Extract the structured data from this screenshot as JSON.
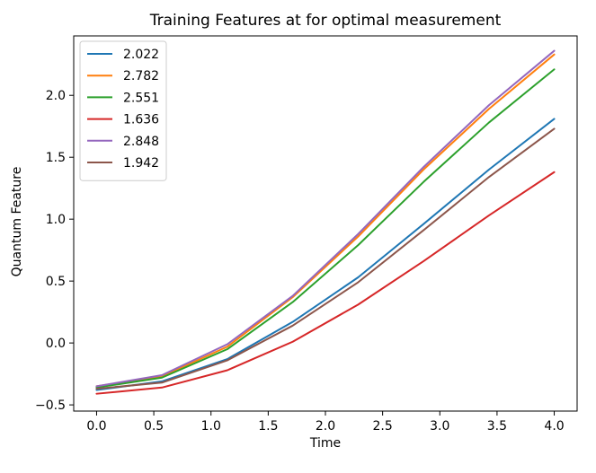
{
  "chart_data": {
    "type": "line",
    "title": "Training Features at for optimal measurement",
    "xlabel": "Time",
    "ylabel": "Quantum Feature",
    "xlim": [
      -0.2,
      4.2
    ],
    "ylim": [
      -0.55,
      2.48
    ],
    "x_ticks": [
      "0.0",
      "0.5",
      "1.0",
      "1.5",
      "2.0",
      "2.5",
      "3.0",
      "3.5",
      "4.0"
    ],
    "y_ticks": [
      "-0.5",
      "0.0",
      "0.5",
      "1.0",
      "1.5",
      "2.0"
    ],
    "grid": false,
    "legend_position": "top-left",
    "x": [
      0.0,
      0.571,
      1.143,
      1.714,
      2.286,
      2.857,
      3.429,
      4.0
    ],
    "series": [
      {
        "name": "2.022",
        "color": "#1f77b4",
        "values": [
          -0.38,
          -0.31,
          -0.13,
          0.17,
          0.53,
          0.96,
          1.4,
          1.81
        ]
      },
      {
        "name": "2.782",
        "color": "#ff7f0e",
        "values": [
          -0.35,
          -0.27,
          -0.03,
          0.37,
          0.86,
          1.4,
          1.89,
          2.33
        ]
      },
      {
        "name": "2.551",
        "color": "#2ca02c",
        "values": [
          -0.36,
          -0.28,
          -0.05,
          0.33,
          0.79,
          1.3,
          1.78,
          2.21
        ]
      },
      {
        "name": "1.636",
        "color": "#d62728",
        "values": [
          -0.41,
          -0.36,
          -0.22,
          0.01,
          0.31,
          0.66,
          1.03,
          1.38
        ]
      },
      {
        "name": "2.848",
        "color": "#9467bd",
        "values": [
          -0.35,
          -0.26,
          -0.01,
          0.38,
          0.88,
          1.42,
          1.92,
          2.36
        ]
      },
      {
        "name": "1.942",
        "color": "#8c564b",
        "values": [
          -0.37,
          -0.32,
          -0.14,
          0.14,
          0.49,
          0.91,
          1.34,
          1.73
        ]
      }
    ]
  }
}
